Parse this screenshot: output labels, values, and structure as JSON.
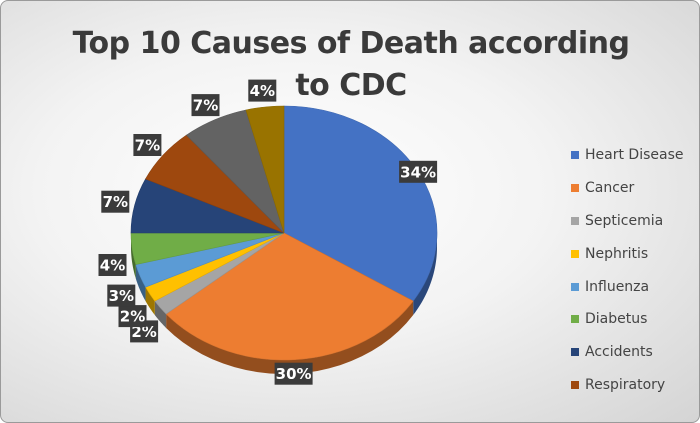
{
  "chart_data": {
    "type": "pie",
    "title": "Top 10 Causes of Death according to CDC",
    "legend_position": "right",
    "categories": [
      "Heart Disease",
      "Cancer",
      "Septicemia",
      "Nephritis",
      "Influenza",
      "Diabetus",
      "Accidents",
      "Respiratory",
      "",
      ""
    ],
    "values": [
      34,
      30,
      2,
      2,
      3,
      4,
      7,
      7,
      7,
      4
    ],
    "labels": [
      "34%",
      "30%",
      "2%",
      "2%",
      "3%",
      "4%",
      "7%",
      "7%",
      "7%",
      "4%"
    ],
    "colors": [
      "#4472c4",
      "#ed7d31",
      "#a5a5a5",
      "#ffc000",
      "#5b9bd5",
      "#70ad47",
      "#264478",
      "#9e480e",
      "#636363",
      "#997300"
    ],
    "legend": [
      {
        "label": "Heart Disease",
        "color": "#4472c4"
      },
      {
        "label": "Cancer",
        "color": "#ed7d31"
      },
      {
        "label": "Septicemia",
        "color": "#a5a5a5"
      },
      {
        "label": "Nephritis",
        "color": "#ffc000"
      },
      {
        "label": "Influenza",
        "color": "#5b9bd5"
      },
      {
        "label": "Diabetus",
        "color": "#70ad47"
      },
      {
        "label": "Accidents",
        "color": "#264478"
      },
      {
        "label": "Respiratory",
        "color": "#9e480e"
      }
    ],
    "label_style": {
      "background": "#3b3b3b",
      "text_color": "#ffffff"
    }
  }
}
